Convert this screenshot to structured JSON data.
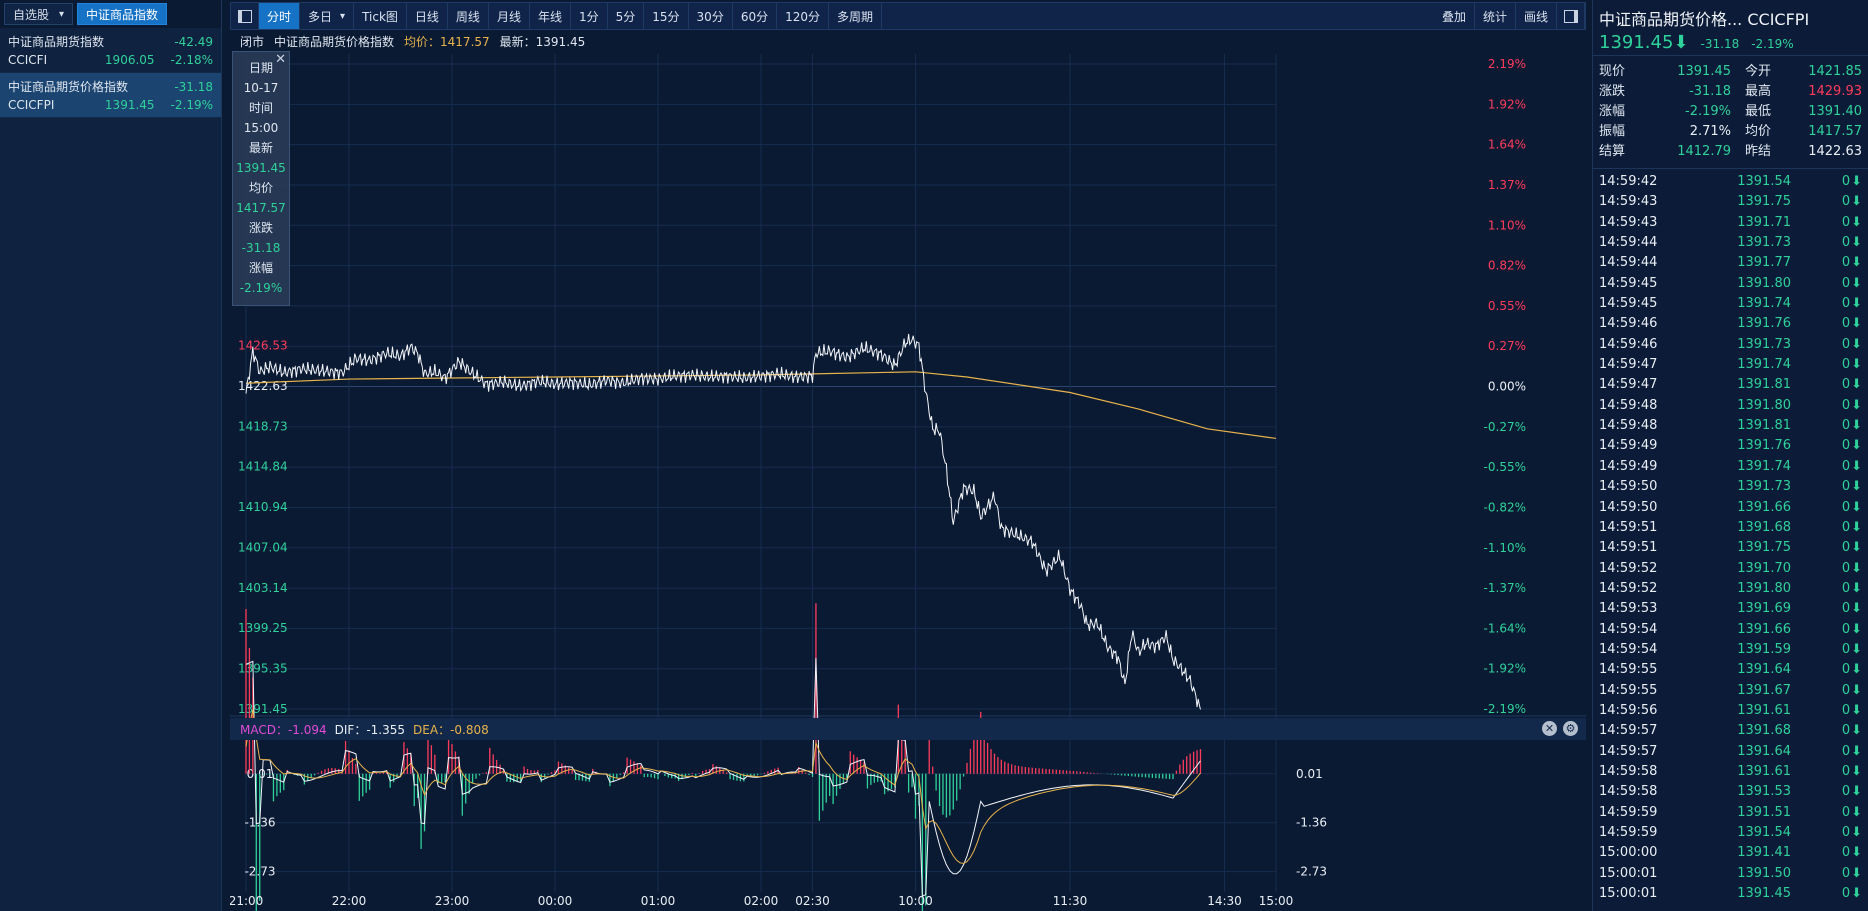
{
  "left_panel": {
    "tabs": [
      {
        "label": "自选股",
        "active": false
      },
      {
        "label": "中证商品指数",
        "active": true
      }
    ],
    "items": [
      {
        "name": "中证商品期货指数",
        "change": "-42.49",
        "code": "CCICFI",
        "price": "1906.05",
        "pct": "-2.18%",
        "selected": false
      },
      {
        "name": "中证商品期货价格指数",
        "change": "-31.18",
        "code": "CCICFPI",
        "price": "1391.45",
        "pct": "-2.19%",
        "selected": true
      }
    ]
  },
  "toolbar": {
    "periods": [
      "分时",
      "多日",
      "Tick图",
      "日线",
      "周线",
      "月线",
      "年线",
      "1分",
      "5分",
      "15分",
      "30分",
      "60分",
      "120分",
      "多周期"
    ],
    "active_index": 0,
    "dropdown_index": 1,
    "right_buttons": [
      "叠加",
      "统计",
      "画线"
    ]
  },
  "infobar": {
    "status": "闭市",
    "name": "中证商品期货价格指数",
    "avg_label": "均价：1417.57",
    "latest_label": "最新：1391.45"
  },
  "tooltip": {
    "date_label": "日期",
    "date": "10-17",
    "time_label": "时间",
    "time": "15:00",
    "latest_label": "最新",
    "latest": "1391.45",
    "avg_label": "均价",
    "avg": "1417.57",
    "chg_label": "涨跌",
    "chg": "-31.18",
    "pct_label": "涨幅",
    "pct": "-2.19%"
  },
  "chart_data": {
    "type": "line",
    "prev_settle": 1422.63,
    "price_ticks": [
      "1426.53",
      "1422.63",
      "1418.73",
      "1414.84",
      "1410.94",
      "1407.04",
      "1403.14",
      "1399.25",
      "1395.35",
      "1391.45"
    ],
    "pct_ticks": [
      "2.19%",
      "1.92%",
      "1.64%",
      "1.37%",
      "1.10%",
      "0.82%",
      "0.55%",
      "0.27%",
      "0.00%",
      "-0.27%",
      "-0.55%",
      "-0.82%",
      "-1.10%",
      "-1.37%",
      "-1.64%",
      "-1.92%",
      "-2.19%"
    ],
    "ylim": [
      1391.45,
      1453.81
    ],
    "time_labels": [
      "21:00",
      "22:00",
      "23:00",
      "00:00",
      "01:00",
      "02:00",
      "02:30",
      "10:00",
      "11:30",
      "14:30",
      "15:00"
    ],
    "time_positions": [
      0,
      60,
      120,
      180,
      240,
      300,
      330,
      390,
      480,
      570,
      600
    ],
    "total_minutes": 600,
    "price_series": [
      [
        0,
        1421.9
      ],
      [
        4,
        1426.0
      ],
      [
        8,
        1424.0
      ],
      [
        14,
        1424.5
      ],
      [
        22,
        1423.9
      ],
      [
        32,
        1424.3
      ],
      [
        44,
        1424.1
      ],
      [
        56,
        1423.9
      ],
      [
        64,
        1425.3
      ],
      [
        72,
        1425.1
      ],
      [
        82,
        1425.8
      ],
      [
        90,
        1425.5
      ],
      [
        96,
        1426.4
      ],
      [
        100,
        1425.8
      ],
      [
        104,
        1423.8
      ],
      [
        110,
        1424.0
      ],
      [
        116,
        1423.4
      ],
      [
        124,
        1425.0
      ],
      [
        130,
        1424.1
      ],
      [
        140,
        1422.8
      ],
      [
        150,
        1423.0
      ],
      [
        160,
        1422.6
      ],
      [
        170,
        1423.1
      ],
      [
        180,
        1422.8
      ],
      [
        190,
        1423.0
      ],
      [
        200,
        1422.7
      ],
      [
        210,
        1423.2
      ],
      [
        220,
        1422.9
      ],
      [
        230,
        1423.4
      ],
      [
        240,
        1423.3
      ],
      [
        250,
        1423.6
      ],
      [
        260,
        1423.7
      ],
      [
        270,
        1423.5
      ],
      [
        280,
        1423.6
      ],
      [
        290,
        1423.4
      ],
      [
        300,
        1423.6
      ],
      [
        310,
        1423.8
      ],
      [
        320,
        1423.5
      ],
      [
        330,
        1423.6
      ],
      [
        332,
        1425.8
      ],
      [
        340,
        1426.0
      ],
      [
        350,
        1425.4
      ],
      [
        360,
        1426.3
      ],
      [
        370,
        1425.7
      ],
      [
        378,
        1424.6
      ],
      [
        384,
        1426.8
      ],
      [
        388,
        1427.1
      ],
      [
        392,
        1426.5
      ],
      [
        396,
        1422.0
      ],
      [
        400,
        1418.5
      ],
      [
        404,
        1418.3
      ],
      [
        408,
        1414.5
      ],
      [
        412,
        1409.5
      ],
      [
        418,
        1412.8
      ],
      [
        424,
        1412.5
      ],
      [
        428,
        1410.0
      ],
      [
        436,
        1412.0
      ],
      [
        440,
        1408.9
      ],
      [
        448,
        1408.3
      ],
      [
        458,
        1407.6
      ],
      [
        466,
        1404.8
      ],
      [
        474,
        1406.2
      ],
      [
        480,
        1403.0
      ],
      [
        486,
        1401.5
      ],
      [
        490,
        1399.6
      ],
      [
        496,
        1399.7
      ],
      [
        502,
        1397.4
      ],
      [
        508,
        1396.4
      ],
      [
        512,
        1393.8
      ],
      [
        516,
        1398.8
      ],
      [
        520,
        1396.9
      ],
      [
        524,
        1397.8
      ],
      [
        530,
        1397.5
      ],
      [
        536,
        1398.5
      ],
      [
        540,
        1396.2
      ],
      [
        544,
        1395.5
      ],
      [
        550,
        1394.2
      ],
      [
        556,
        1391.4
      ]
    ],
    "avg_series": [
      [
        0,
        1422.9
      ],
      [
        60,
        1423.3
      ],
      [
        120,
        1423.4
      ],
      [
        180,
        1423.5
      ],
      [
        240,
        1423.6
      ],
      [
        300,
        1423.7
      ],
      [
        330,
        1423.8
      ],
      [
        390,
        1424.0
      ],
      [
        420,
        1423.5
      ],
      [
        480,
        1422.0
      ],
      [
        520,
        1420.4
      ],
      [
        560,
        1418.5
      ],
      [
        600,
        1417.57
      ]
    ],
    "macd": {
      "label_macd": "MACD：-1.094",
      "label_dif": "DIF：-1.355",
      "label_dea": "DEA：-0.808",
      "ticks": [
        "0.01",
        "-1.36",
        "-2.73"
      ],
      "ylim": [
        -3.3,
        0.9
      ]
    }
  },
  "right_panel": {
    "title": "中证商品期货价格...",
    "code": "CCICFPI",
    "price": "1391.45",
    "change": "-31.18",
    "pct": "-2.19%",
    "quote_rows": [
      {
        "k1": "现价",
        "v1": "1391.45",
        "c1": "grn",
        "k2": "今开",
        "v2": "1421.85",
        "c2": "grn"
      },
      {
        "k1": "涨跌",
        "v1": "-31.18",
        "c1": "grn",
        "k2": "最高",
        "v2": "1429.93",
        "c2": "red"
      },
      {
        "k1": "涨幅",
        "v1": "-2.19%",
        "c1": "grn",
        "k2": "最低",
        "v2": "1391.40",
        "c2": "grn"
      },
      {
        "k1": "振幅",
        "v1": "2.71%",
        "c1": "wht",
        "k2": "均价",
        "v2": "1417.57",
        "c2": "grn"
      },
      {
        "k1": "结算",
        "v1": "1412.79",
        "c1": "grn",
        "k2": "昨结",
        "v2": "1422.63",
        "c2": "wht"
      }
    ],
    "ticks": [
      {
        "time": "14:59:42",
        "price": "1391.54",
        "vol": "0"
      },
      {
        "time": "14:59:43",
        "price": "1391.75",
        "vol": "0"
      },
      {
        "time": "14:59:43",
        "price": "1391.71",
        "vol": "0"
      },
      {
        "time": "14:59:44",
        "price": "1391.73",
        "vol": "0"
      },
      {
        "time": "14:59:44",
        "price": "1391.77",
        "vol": "0"
      },
      {
        "time": "14:59:45",
        "price": "1391.80",
        "vol": "0"
      },
      {
        "time": "14:59:45",
        "price": "1391.74",
        "vol": "0"
      },
      {
        "time": "14:59:46",
        "price": "1391.76",
        "vol": "0"
      },
      {
        "time": "14:59:46",
        "price": "1391.73",
        "vol": "0"
      },
      {
        "time": "14:59:47",
        "price": "1391.74",
        "vol": "0"
      },
      {
        "time": "14:59:47",
        "price": "1391.81",
        "vol": "0"
      },
      {
        "time": "14:59:48",
        "price": "1391.80",
        "vol": "0"
      },
      {
        "time": "14:59:48",
        "price": "1391.81",
        "vol": "0"
      },
      {
        "time": "14:59:49",
        "price": "1391.76",
        "vol": "0"
      },
      {
        "time": "14:59:49",
        "price": "1391.74",
        "vol": "0"
      },
      {
        "time": "14:59:50",
        "price": "1391.73",
        "vol": "0"
      },
      {
        "time": "14:59:50",
        "price": "1391.66",
        "vol": "0"
      },
      {
        "time": "14:59:51",
        "price": "1391.68",
        "vol": "0"
      },
      {
        "time": "14:59:51",
        "price": "1391.75",
        "vol": "0"
      },
      {
        "time": "14:59:52",
        "price": "1391.70",
        "vol": "0"
      },
      {
        "time": "14:59:52",
        "price": "1391.80",
        "vol": "0"
      },
      {
        "time": "14:59:53",
        "price": "1391.69",
        "vol": "0"
      },
      {
        "time": "14:59:54",
        "price": "1391.66",
        "vol": "0"
      },
      {
        "time": "14:59:54",
        "price": "1391.59",
        "vol": "0"
      },
      {
        "time": "14:59:55",
        "price": "1391.64",
        "vol": "0"
      },
      {
        "time": "14:59:55",
        "price": "1391.67",
        "vol": "0"
      },
      {
        "time": "14:59:56",
        "price": "1391.61",
        "vol": "0"
      },
      {
        "time": "14:59:57",
        "price": "1391.68",
        "vol": "0"
      },
      {
        "time": "14:59:57",
        "price": "1391.64",
        "vol": "0"
      },
      {
        "time": "14:59:58",
        "price": "1391.61",
        "vol": "0"
      },
      {
        "time": "14:59:58",
        "price": "1391.53",
        "vol": "0"
      },
      {
        "time": "14:59:59",
        "price": "1391.51",
        "vol": "0"
      },
      {
        "time": "14:59:59",
        "price": "1391.54",
        "vol": "0"
      },
      {
        "time": "15:00:00",
        "price": "1391.41",
        "vol": "0"
      },
      {
        "time": "15:00:01",
        "price": "1391.50",
        "vol": "0"
      },
      {
        "time": "15:00:01",
        "price": "1391.45",
        "vol": "0"
      }
    ]
  },
  "colors": {
    "up": "#ff3b5c",
    "down": "#2fd19b",
    "avg": "#e7b34b",
    "price_line": "#f2f5fa",
    "accent": "#1672c4"
  }
}
